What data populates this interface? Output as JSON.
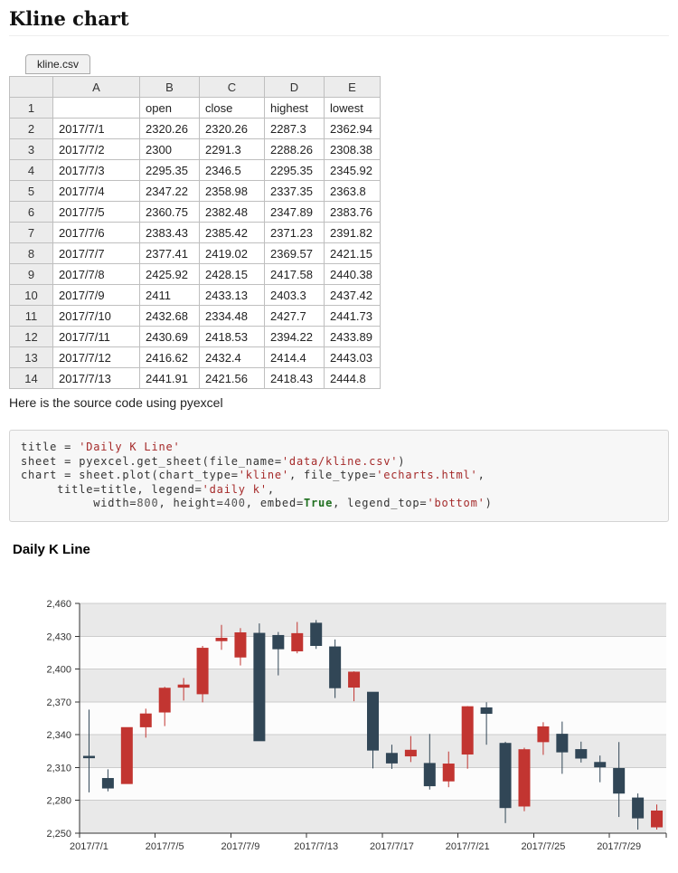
{
  "page": {
    "title_heading": "Kline chart"
  },
  "sheet": {
    "tab_label": "kline.csv",
    "column_headers": [
      "",
      "A",
      "B",
      "C",
      "D",
      "E"
    ],
    "rows": [
      [
        "1",
        "",
        "open",
        "close",
        "highest",
        "lowest"
      ],
      [
        "2",
        "2017/7/1",
        "2320.26",
        "2320.26",
        "2287.3",
        "2362.94"
      ],
      [
        "3",
        "2017/7/2",
        "2300",
        "2291.3",
        "2288.26",
        "2308.38"
      ],
      [
        "4",
        "2017/7/3",
        "2295.35",
        "2346.5",
        "2295.35",
        "2345.92"
      ],
      [
        "5",
        "2017/7/4",
        "2347.22",
        "2358.98",
        "2337.35",
        "2363.8"
      ],
      [
        "6",
        "2017/7/5",
        "2360.75",
        "2382.48",
        "2347.89",
        "2383.76"
      ],
      [
        "7",
        "2017/7/6",
        "2383.43",
        "2385.42",
        "2371.23",
        "2391.82"
      ],
      [
        "8",
        "2017/7/7",
        "2377.41",
        "2419.02",
        "2369.57",
        "2421.15"
      ],
      [
        "9",
        "2017/7/8",
        "2425.92",
        "2428.15",
        "2417.58",
        "2440.38"
      ],
      [
        "10",
        "2017/7/9",
        "2411",
        "2433.13",
        "2403.3",
        "2437.42"
      ],
      [
        "11",
        "2017/7/10",
        "2432.68",
        "2334.48",
        "2427.7",
        "2441.73"
      ],
      [
        "12",
        "2017/7/11",
        "2430.69",
        "2418.53",
        "2394.22",
        "2433.89"
      ],
      [
        "13",
        "2017/7/12",
        "2416.62",
        "2432.4",
        "2414.4",
        "2443.03"
      ],
      [
        "14",
        "2017/7/13",
        "2441.91",
        "2421.56",
        "2418.43",
        "2444.8"
      ]
    ]
  },
  "caption_text": "Here is the source code using pyexcel",
  "code": {
    "lines": [
      "title = 'Daily K Line'",
      "sheet = pyexcel.get_sheet(file_name='data/kline.csv')",
      "chart = sheet.plot(chart_type='kline', file_type='echarts.html',",
      "     title=title, legend='daily k',",
      "          width=800, height=400, embed=True, legend_top='bottom')"
    ]
  },
  "chart_data": {
    "type": "candlestick",
    "title": "Daily K Line",
    "series_name": "daily k",
    "value_order": [
      "open",
      "close",
      "low",
      "high"
    ],
    "x": [
      "2017/7/1",
      "2017/7/2",
      "2017/7/3",
      "2017/7/4",
      "2017/7/5",
      "2017/7/6",
      "2017/7/7",
      "2017/7/8",
      "2017/7/9",
      "2017/7/10",
      "2017/7/11",
      "2017/7/12",
      "2017/7/13",
      "2017/7/14",
      "2017/7/15",
      "2017/7/16",
      "2017/7/17",
      "2017/7/18",
      "2017/7/19",
      "2017/7/20",
      "2017/7/21",
      "2017/7/22",
      "2017/7/23",
      "2017/7/24",
      "2017/7/25",
      "2017/7/26",
      "2017/7/27",
      "2017/7/28",
      "2017/7/29",
      "2017/7/30",
      "2017/7/31"
    ],
    "values": [
      [
        2320.26,
        2320.26,
        2287.3,
        2362.94
      ],
      [
        2300.0,
        2291.3,
        2288.26,
        2308.38
      ],
      [
        2295.35,
        2346.5,
        2295.35,
        2345.92
      ],
      [
        2347.22,
        2358.98,
        2337.35,
        2363.8
      ],
      [
        2360.75,
        2382.48,
        2347.89,
        2383.76
      ],
      [
        2383.43,
        2385.42,
        2371.23,
        2391.82
      ],
      [
        2377.41,
        2419.02,
        2369.57,
        2421.15
      ],
      [
        2425.92,
        2428.15,
        2417.58,
        2440.38
      ],
      [
        2411.0,
        2433.13,
        2403.3,
        2437.42
      ],
      [
        2432.68,
        2334.48,
        2427.7,
        2441.73
      ],
      [
        2430.69,
        2418.53,
        2394.22,
        2433.89
      ],
      [
        2416.62,
        2432.4,
        2414.4,
        2443.03
      ],
      [
        2441.91,
        2421.56,
        2418.43,
        2444.8
      ],
      [
        2420.26,
        2382.91,
        2373.53,
        2427.07
      ],
      [
        2383.49,
        2397.18,
        2370.61,
        2397.94
      ],
      [
        2378.82,
        2325.95,
        2309.17,
        2378.82
      ],
      [
        2322.94,
        2314.16,
        2308.76,
        2330.88
      ],
      [
        2320.62,
        2325.82,
        2315.01,
        2338.78
      ],
      [
        2313.74,
        2293.34,
        2289.89,
        2340.71
      ],
      [
        2297.77,
        2313.22,
        2292.03,
        2324.63
      ],
      [
        2322.32,
        2365.59,
        2308.92,
        2366.16
      ],
      [
        2364.54,
        2359.51,
        2330.86,
        2369.65
      ],
      [
        2332.08,
        2273.4,
        2259.25,
        2333.54
      ],
      [
        2274.81,
        2326.31,
        2270.1,
        2328.14
      ],
      [
        2333.61,
        2347.18,
        2321.6,
        2351.44
      ],
      [
        2340.44,
        2324.29,
        2304.27,
        2352.02
      ],
      [
        2326.42,
        2318.61,
        2314.59,
        2333.67
      ],
      [
        2314.68,
        2310.59,
        2296.58,
        2320.96
      ],
      [
        2309.16,
        2286.6,
        2264.83,
        2333.29
      ],
      [
        2282.17,
        2263.97,
        2253.25,
        2286.33
      ],
      [
        2255.77,
        2270.28,
        2253.31,
        2276.22
      ]
    ],
    "ylim": [
      2250,
      2460
    ],
    "ytick_step": 30,
    "ytick_labels": [
      "2,460",
      "2,430",
      "2,400",
      "2,370",
      "2,340",
      "2,310",
      "2,280",
      "2,250"
    ],
    "xtick_labels": [
      "2017/7/1",
      "2017/7/5",
      "2017/7/9",
      "2017/7/13",
      "2017/7/17",
      "2017/7/21",
      "2017/7/25",
      "2017/7/29"
    ],
    "colors": {
      "up": "#c23531",
      "down": "#314656"
    },
    "band_colors": [
      "#e9e9e9",
      "#fcfcfc"
    ],
    "gridline_color": "#cccccc",
    "axis_color": "#333333",
    "grid_on": true,
    "legend_position": "bottom"
  }
}
